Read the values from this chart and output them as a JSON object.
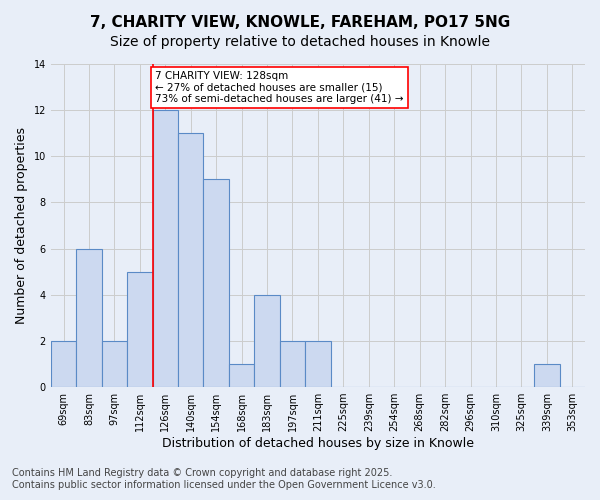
{
  "title": "7, CHARITY VIEW, KNOWLE, FAREHAM, PO17 5NG",
  "subtitle": "Size of property relative to detached houses in Knowle",
  "xlabel": "Distribution of detached houses by size in Knowle",
  "ylabel": "Number of detached properties",
  "footer1": "Contains HM Land Registry data © Crown copyright and database right 2025.",
  "footer2": "Contains public sector information licensed under the Open Government Licence v3.0.",
  "bins": [
    "69sqm",
    "83sqm",
    "97sqm",
    "112sqm",
    "126sqm",
    "140sqm",
    "154sqm",
    "168sqm",
    "183sqm",
    "197sqm",
    "211sqm",
    "225sqm",
    "239sqm",
    "254sqm",
    "268sqm",
    "282sqm",
    "296sqm",
    "310sqm",
    "325sqm",
    "339sqm",
    "353sqm"
  ],
  "values": [
    2,
    6,
    2,
    5,
    12,
    11,
    9,
    1,
    4,
    2,
    2,
    0,
    0,
    0,
    0,
    0,
    0,
    0,
    0,
    1,
    0
  ],
  "bar_color": "#ccd9f0",
  "bar_edge_color": "#5a8ac6",
  "bar_linewidth": 0.8,
  "highlight_bar_index": 4,
  "highlight_line_color": "red",
  "annotation_line1": "7 CHARITY VIEW: 128sqm",
  "annotation_line2": "← 27% of detached houses are smaller (15)",
  "annotation_line3": "73% of semi-detached houses are larger (41) →",
  "annotation_box_color": "white",
  "annotation_box_edge": "red",
  "ylim": [
    0,
    14
  ],
  "yticks": [
    0,
    2,
    4,
    6,
    8,
    10,
    12,
    14
  ],
  "grid_color": "#cccccc",
  "bg_color": "#e8eef8",
  "plot_bg_color": "#e8eef8",
  "title_fontsize": 11,
  "subtitle_fontsize": 10,
  "xlabel_fontsize": 9,
  "ylabel_fontsize": 9,
  "tick_fontsize": 7,
  "footer_fontsize": 7,
  "annotation_fontsize": 7.5
}
